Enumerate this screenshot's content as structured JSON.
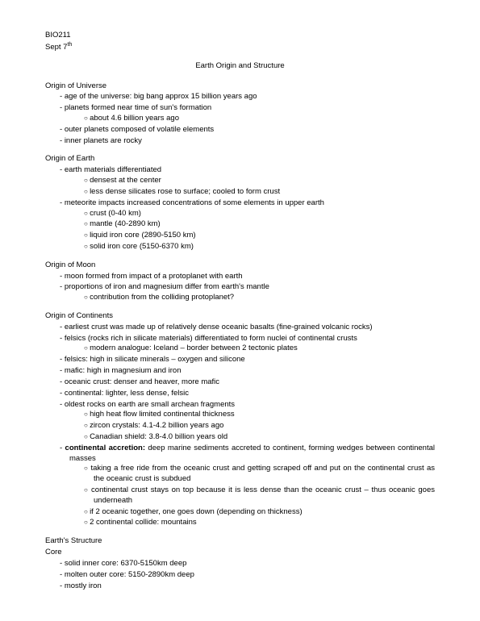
{
  "header": {
    "course": "BIO211",
    "date_prefix": "Sept 7",
    "date_suffix": "th"
  },
  "title": "Earth Origin and Structure",
  "s1": {
    "head": "Origin of Universe",
    "b1": "age of the universe: big bang approx 15 billion years ago",
    "b2": "planets formed near time of sun's formation",
    "b2a": "about 4.6 billion years ago",
    "b3": "outer planets composed of volatile elements",
    "b4": "inner planets are rocky"
  },
  "s2": {
    "head": "Origin of Earth",
    "b1": "earth materials differentiated",
    "b1a": "densest at the center",
    "b1b": "less dense silicates rose to surface; cooled to form crust",
    "b2": "meteorite impacts increased concentrations of some elements in upper earth",
    "b2a": "crust (0-40 km)",
    "b2b": "mantle (40-2890 km)",
    "b2c": "liquid iron core (2890-5150 km)",
    "b2d": "solid iron core (5150-6370 km)"
  },
  "s3": {
    "head": "Origin of Moon",
    "b1": "moon formed from impact of a protoplanet with earth",
    "b2": "proportions of iron and magnesium differ from earth's mantle",
    "b2a": "contribution from the colliding protoplanet?"
  },
  "s4": {
    "head": "Origin of Continents",
    "b1": "earliest crust was made up of relatively dense oceanic basalts (fine-grained volcanic rocks)",
    "b2": "felsics (rocks rich in silicate materials) differentiated to form nuclei of continental crusts",
    "b2a": "modern analogue: Iceland – border between 2 tectonic plates",
    "b3": "felsics: high in silicate minerals – oxygen and silicone",
    "b4": "mafic: high in magnesium and iron",
    "b5": "oceanic crust: denser and heaver, more mafic",
    "b6": "continental: lighter, less dense, felsic",
    "b7": "oldest rocks on earth are small archean fragments",
    "b7a": "high heat flow limited continental thickness",
    "b7b": "zircon crystals: 4.1-4.2 billion years ago",
    "b7c": "Canadian shield: 3.8-4.0 billion years old",
    "b8_bold": "continental accretion:",
    "b8_rest": " deep marine sediments accreted to continent, forming wedges between continental masses",
    "b8a": "taking a free ride from the oceanic crust and getting scraped off and put on the continental crust as the oceanic crust is subdued",
    "b8b": "continental crust stays on top because it is less dense than the oceanic crust – thus oceanic goes underneath",
    "b8c": "if 2 oceanic together, one goes down (depending on thickness)",
    "b8d": "2 continental collide: mountains"
  },
  "s5": {
    "head": "Earth's Structure",
    "sub": "Core",
    "b1": "solid inner core: 6370-5150km deep",
    "b2": "molten outer core: 5150-2890km deep",
    "b3": "mostly iron"
  }
}
